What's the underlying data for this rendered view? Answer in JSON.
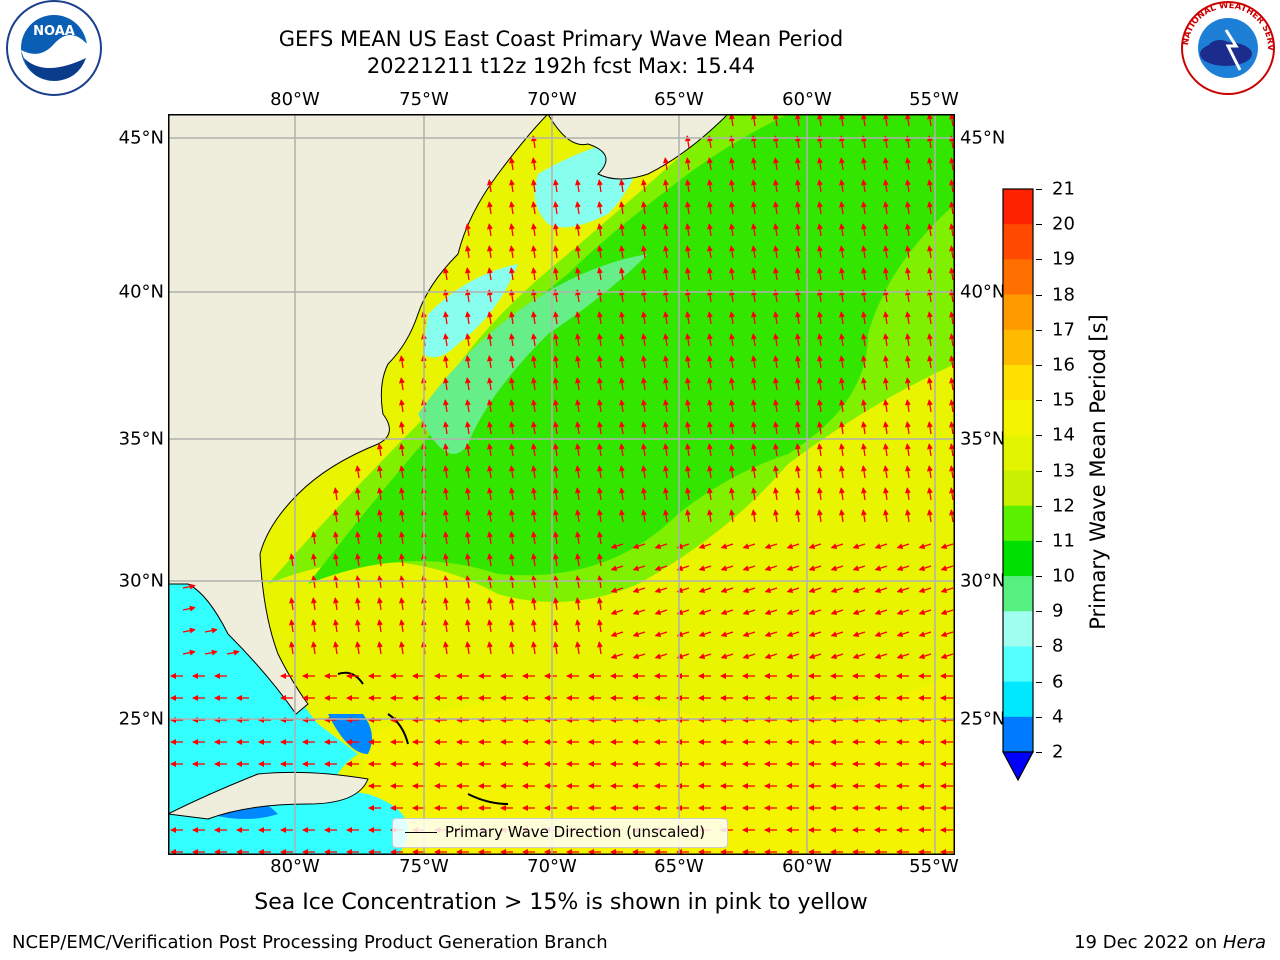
{
  "title_line1": "GEFS MEAN US East Coast Primary Wave Mean Period",
  "title_line2": "20221211 t12z 192h fcst   Max: 15.44",
  "logos": {
    "noaa_left": "NOAA",
    "noaa_ring": "NATIONAL OCEANIC AND ATMOSPHERIC ADMINISTRATION · U.S. DEPARTMENT OF COMMERCE",
    "nws_ring": "NATIONAL WEATHER SERVICE"
  },
  "map": {
    "lon_labels": [
      "80°W",
      "75°W",
      "70°W",
      "65°W",
      "60°W",
      "55°W"
    ],
    "lat_labels": [
      "45°N",
      "40°N",
      "35°N",
      "30°N",
      "25°N"
    ],
    "legend_label": "Primary Wave Direction (unscaled)",
    "arrow_color": "#ff0000",
    "land_color": "#efeedc"
  },
  "colorbar": {
    "label": "Primary Wave Mean Period [s]",
    "ticks": [
      "21",
      "20",
      "19",
      "18",
      "17",
      "16",
      "15",
      "14",
      "13",
      "12",
      "11",
      "10",
      "9",
      "8",
      "6",
      "4",
      "2"
    ],
    "colors": [
      "#ff0000",
      "#ff2200",
      "#ff4a00",
      "#ff7000",
      "#ff9900",
      "#ffbb00",
      "#ffe000",
      "#f4f400",
      "#e2f400",
      "#c8f000",
      "#5af000",
      "#00e000",
      "#55f080",
      "#a0fff0",
      "#55ffff",
      "#00e8ff",
      "#007bff"
    ],
    "extend_color": "#0000ff"
  },
  "subtitle": "Sea Ice Concentration > 15% is shown in pink to yellow",
  "footer_left": "NCEP/EMC/Verification Post Processing Product Generation Branch",
  "footer_right_date": "19 Dec 2022 on ",
  "footer_right_machine": "Hera"
}
